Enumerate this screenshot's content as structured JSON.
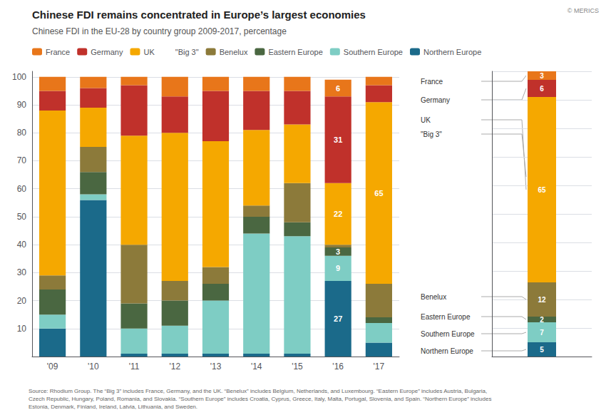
{
  "chart_data": [
    {
      "type": "bar",
      "title": "Chinese FDI remains concentrated in Europe’s largest economies",
      "subtitle": "Chinese FDI in the EU-28 by country group 2009-2017, percentage",
      "stacked": true,
      "categories": [
        "'09",
        "'10",
        "'11",
        "'12",
        "'13",
        "'14",
        "'15",
        "'16",
        "'17"
      ],
      "series": [
        {
          "name": "Northern Europe",
          "color": "#1b6a8a",
          "values": [
            10,
            56,
            1,
            1,
            1,
            1,
            1,
            27,
            5
          ],
          "value_labels": [
            null,
            null,
            null,
            null,
            null,
            null,
            null,
            "27",
            null
          ]
        },
        {
          "name": "Southern Europe",
          "color": "#7ecdc4",
          "values": [
            5,
            2,
            9,
            10,
            19,
            43,
            42,
            9,
            7
          ],
          "value_labels": [
            null,
            null,
            null,
            null,
            null,
            null,
            null,
            "9",
            null
          ]
        },
        {
          "name": "Eastern Europe",
          "color": "#4a6741",
          "values": [
            9,
            8,
            9,
            9,
            6,
            6,
            5,
            3,
            2
          ],
          "value_labels": [
            null,
            null,
            null,
            null,
            null,
            null,
            null,
            "3",
            null
          ]
        },
        {
          "name": "Benelux",
          "color": "#8c7a3a",
          "values": [
            5,
            9,
            21,
            7,
            6,
            4,
            14,
            1,
            12
          ]
        },
        {
          "name": "\"Big 3\"",
          "values": [
            null,
            null,
            null,
            null,
            null,
            null,
            null,
            null,
            null
          ]
        },
        {
          "name": "UK",
          "color": "#f5a800",
          "values": [
            59,
            14,
            39,
            53,
            45,
            27,
            21,
            22,
            65
          ],
          "value_labels": [
            null,
            null,
            null,
            null,
            null,
            null,
            null,
            "22",
            "65"
          ]
        },
        {
          "name": "Germany",
          "color": "#c0312b",
          "values": [
            7,
            7,
            18,
            13,
            18,
            14,
            12,
            31,
            6
          ],
          "value_labels": [
            null,
            null,
            null,
            null,
            null,
            null,
            null,
            "31",
            null
          ]
        },
        {
          "name": "France",
          "color": "#e8761a",
          "values": [
            5,
            4,
            3,
            7,
            5,
            5,
            5,
            6,
            3
          ],
          "value_labels": [
            null,
            null,
            null,
            null,
            null,
            null,
            null,
            "6",
            null
          ]
        }
      ],
      "ylim": [
        0,
        102
      ],
      "yticks": [
        10,
        20,
        30,
        40,
        50,
        60,
        70,
        80,
        90,
        100
      ],
      "grid": true,
      "legend": "top",
      "source": "Source: Rhodium Group. The “Big 3” includes France, Germany, and the UK. “Benelux” includes Belgium, Netherlands, and Luxembourg. “Eastern Europe” includes Austria, Bulgaria,\nCzech Republic, Hungary, Poland, Romania, and Slovakia. “Southern Europe” includes Croatia, Cyprus, Greece, Italy, Malta, Portugal, Slovenia, and Spain. “Northern Europe” includes\nEstonia, Denmark, Finland, Ireland, Latvia, Lithuania, and Sweden.",
      "credit": "© MERICS"
    },
    {
      "type": "bar",
      "stacked": true,
      "categories": [
        null
      ],
      "series": [
        {
          "name": "Northern Europe",
          "color": "#1b6a8a",
          "values": [
            5
          ],
          "value_labels": [
            "5"
          ]
        },
        {
          "name": "Southern Europe",
          "color": "#7ecdc4",
          "values": [
            7
          ],
          "value_labels": [
            "7"
          ]
        },
        {
          "name": "Eastern Europe",
          "color": "#4a6741",
          "values": [
            2
          ],
          "value_labels": [
            "2"
          ]
        },
        {
          "name": "Benelux",
          "color": "#8c7a3a",
          "values": [
            12
          ],
          "value_labels": [
            "12"
          ]
        },
        {
          "name": "UK",
          "color": "#f5a800",
          "values": [
            65
          ],
          "value_labels": [
            "65"
          ]
        },
        {
          "name": "Germany",
          "color": "#c0312b",
          "values": [
            6
          ],
          "value_labels": [
            "6"
          ]
        },
        {
          "name": "France",
          "color": "#e8761a",
          "values": [
            3
          ],
          "value_labels": [
            "3"
          ]
        }
      ],
      "annotations": [
        "France",
        "Germany",
        "UK",
        "\"Big 3\"",
        "Benelux",
        "Eastern Europe",
        "Southern Europe",
        "Northern Europe"
      ],
      "ylim": [
        0,
        100
      ],
      "yticks": [
        0,
        10,
        20,
        30,
        40,
        50,
        60,
        70,
        80,
        90,
        100
      ],
      "tick_labels": false,
      "grid": true
    }
  ]
}
